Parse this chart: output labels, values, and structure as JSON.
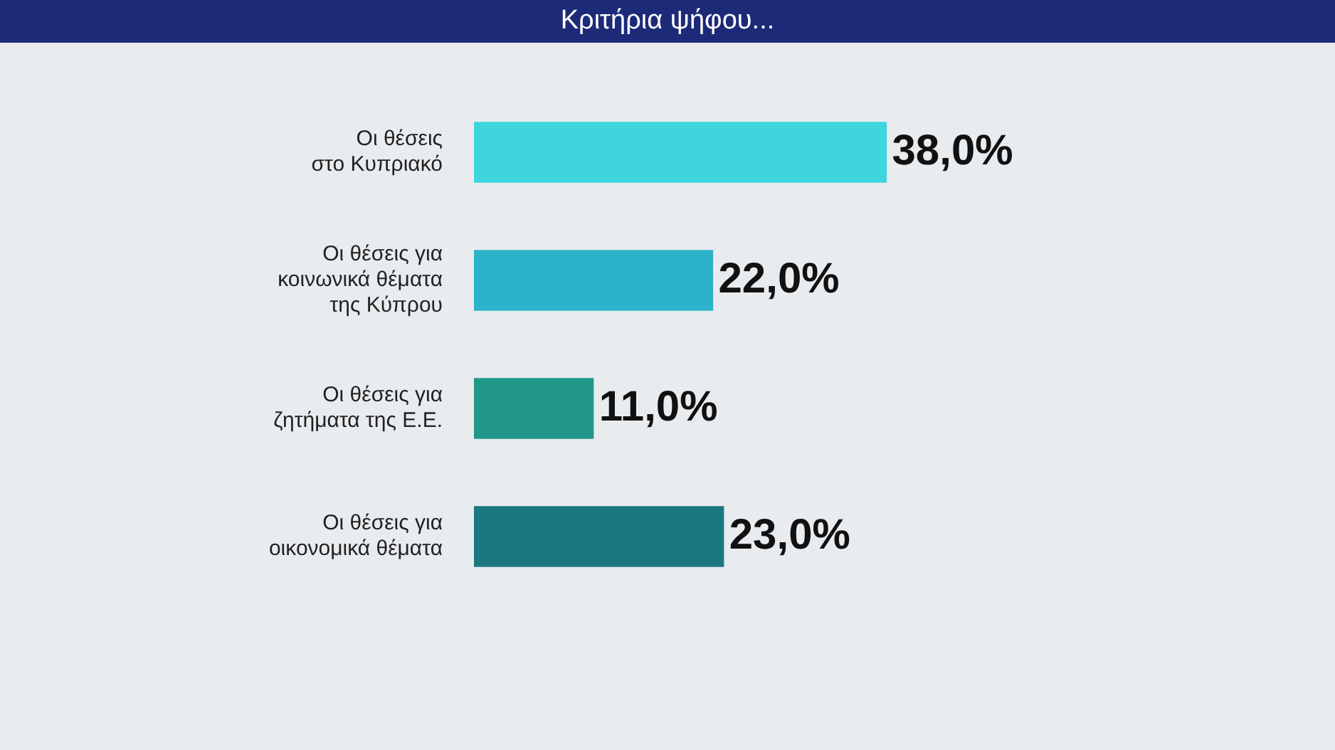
{
  "chart_data": {
    "type": "bar",
    "orientation": "horizontal",
    "title": "Κριτήρια ψήφου...",
    "categories": [
      "Οι θέσεις\nστο Κυπριακό",
      "Οι θέσεις για\nκοινωνικά θέματα\nτης Κύπρου",
      "Οι θέσεις για\nζητήματα της Ε.Ε.",
      "Οι θέσεις για\nοικονομικά θέματα"
    ],
    "values": [
      38,
      22,
      11,
      23
    ],
    "colors": [
      "#3fd5df",
      "#2cb3c9",
      "#21978a",
      "#1b7880"
    ],
    "value_labels": [
      "38,0%",
      "22,0%",
      "11,0%",
      "23,0%"
    ],
    "tick_labels": "y",
    "legend": false
  }
}
